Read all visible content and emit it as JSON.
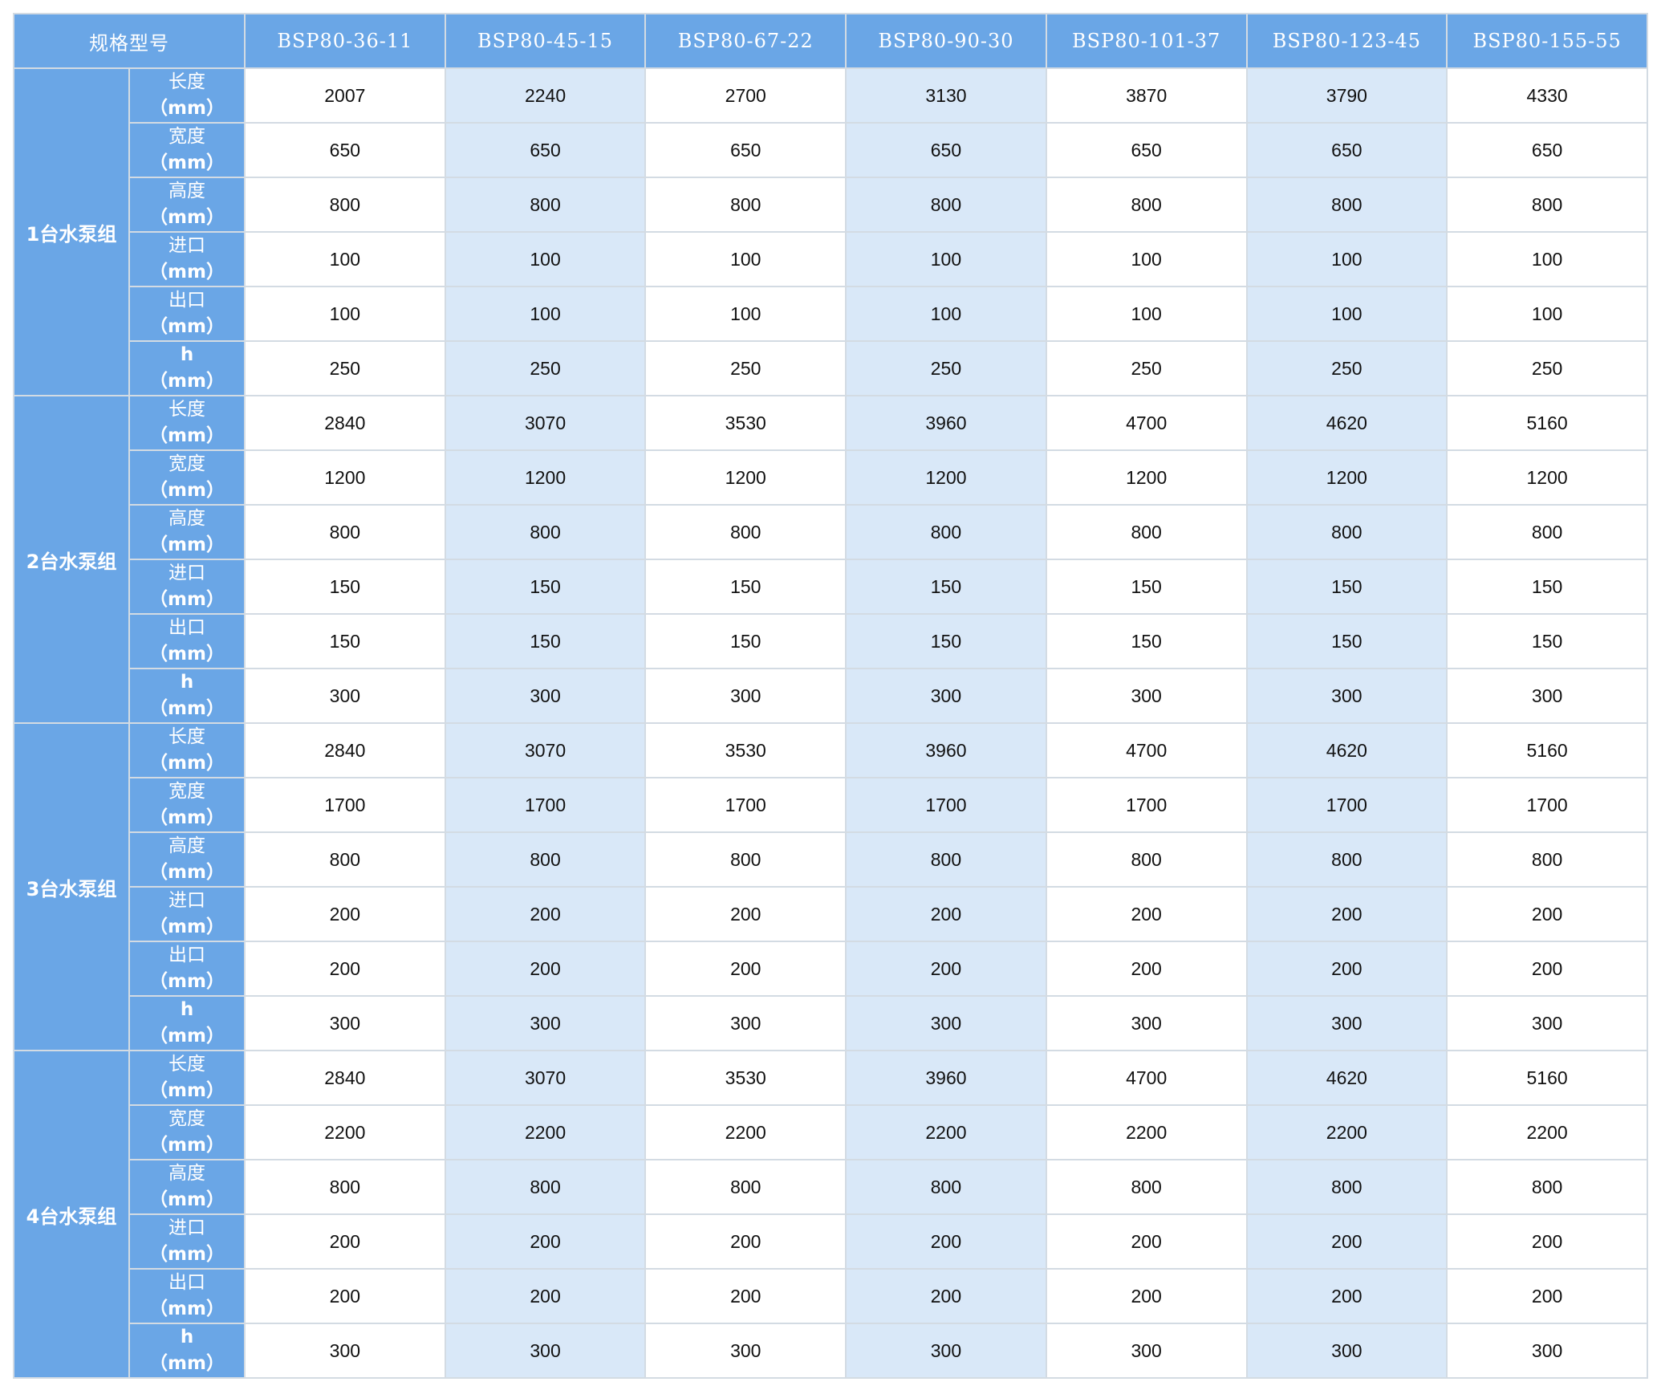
{
  "table": {
    "corner_header": "规格型号",
    "models": [
      "BSP80-36-11",
      "BSP80-45-15",
      "BSP80-67-22",
      "BSP80-90-30",
      "BSP80-101-37",
      "BSP80-123-45",
      "BSP80-155-55"
    ],
    "groups": [
      {
        "label": "1台水泵组",
        "rows": [
          {
            "name": "长度",
            "unit": "（mm）",
            "values": [
              "2007",
              "2240",
              "2700",
              "3130",
              "3870",
              "3790",
              "4330"
            ]
          },
          {
            "name": "宽度",
            "unit": "（mm）",
            "values": [
              "650",
              "650",
              "650",
              "650",
              "650",
              "650",
              "650"
            ]
          },
          {
            "name": "高度",
            "unit": "（mm）",
            "values": [
              "800",
              "800",
              "800",
              "800",
              "800",
              "800",
              "800"
            ]
          },
          {
            "name": "进口",
            "unit": "（mm）",
            "values": [
              "100",
              "100",
              "100",
              "100",
              "100",
              "100",
              "100"
            ]
          },
          {
            "name": "出口",
            "unit": "（mm）",
            "values": [
              "100",
              "100",
              "100",
              "100",
              "100",
              "100",
              "100"
            ]
          },
          {
            "name": "h",
            "unit": "（mm）",
            "values": [
              "250",
              "250",
              "250",
              "250",
              "250",
              "250",
              "250"
            ]
          }
        ]
      },
      {
        "label": "2台水泵组",
        "rows": [
          {
            "name": "长度",
            "unit": "（mm）",
            "values": [
              "2840",
              "3070",
              "3530",
              "3960",
              "4700",
              "4620",
              "5160"
            ]
          },
          {
            "name": "宽度",
            "unit": "（mm）",
            "values": [
              "1200",
              "1200",
              "1200",
              "1200",
              "1200",
              "1200",
              "1200"
            ]
          },
          {
            "name": "高度",
            "unit": "（mm）",
            "values": [
              "800",
              "800",
              "800",
              "800",
              "800",
              "800",
              "800"
            ]
          },
          {
            "name": "进口",
            "unit": "（mm）",
            "values": [
              "150",
              "150",
              "150",
              "150",
              "150",
              "150",
              "150"
            ]
          },
          {
            "name": "出口",
            "unit": "（mm）",
            "values": [
              "150",
              "150",
              "150",
              "150",
              "150",
              "150",
              "150"
            ]
          },
          {
            "name": "h",
            "unit": "（mm）",
            "values": [
              "300",
              "300",
              "300",
              "300",
              "300",
              "300",
              "300"
            ]
          }
        ]
      },
      {
        "label": "3台水泵组",
        "rows": [
          {
            "name": "长度",
            "unit": "（mm）",
            "values": [
              "2840",
              "3070",
              "3530",
              "3960",
              "4700",
              "4620",
              "5160"
            ]
          },
          {
            "name": "宽度",
            "unit": "（mm）",
            "values": [
              "1700",
              "1700",
              "1700",
              "1700",
              "1700",
              "1700",
              "1700"
            ]
          },
          {
            "name": "高度",
            "unit": "（mm）",
            "values": [
              "800",
              "800",
              "800",
              "800",
              "800",
              "800",
              "800"
            ]
          },
          {
            "name": "进口",
            "unit": "（mm）",
            "values": [
              "200",
              "200",
              "200",
              "200",
              "200",
              "200",
              "200"
            ]
          },
          {
            "name": "出口",
            "unit": "（mm）",
            "values": [
              "200",
              "200",
              "200",
              "200",
              "200",
              "200",
              "200"
            ]
          },
          {
            "name": "h",
            "unit": "（mm）",
            "values": [
              "300",
              "300",
              "300",
              "300",
              "300",
              "300",
              "300"
            ]
          }
        ]
      },
      {
        "label": "4台水泵组",
        "rows": [
          {
            "name": "长度",
            "unit": "（mm）",
            "values": [
              "2840",
              "3070",
              "3530",
              "3960",
              "4700",
              "4620",
              "5160"
            ]
          },
          {
            "name": "宽度",
            "unit": "（mm）",
            "values": [
              "2200",
              "2200",
              "2200",
              "2200",
              "2200",
              "2200",
              "2200"
            ]
          },
          {
            "name": "高度",
            "unit": "（mm）",
            "values": [
              "800",
              "800",
              "800",
              "800",
              "800",
              "800",
              "800"
            ]
          },
          {
            "name": "进口",
            "unit": "（mm）",
            "values": [
              "200",
              "200",
              "200",
              "200",
              "200",
              "200",
              "200"
            ]
          },
          {
            "name": "出口",
            "unit": "（mm）",
            "values": [
              "200",
              "200",
              "200",
              "200",
              "200",
              "200",
              "200"
            ]
          },
          {
            "name": "h",
            "unit": "（mm）",
            "values": [
              "300",
              "300",
              "300",
              "300",
              "300",
              "300",
              "300"
            ]
          }
        ]
      }
    ],
    "colors": {
      "header_blue": "#6aa6e6",
      "alt_column": "#d9e8f8",
      "border": "#d3dbe3"
    }
  }
}
